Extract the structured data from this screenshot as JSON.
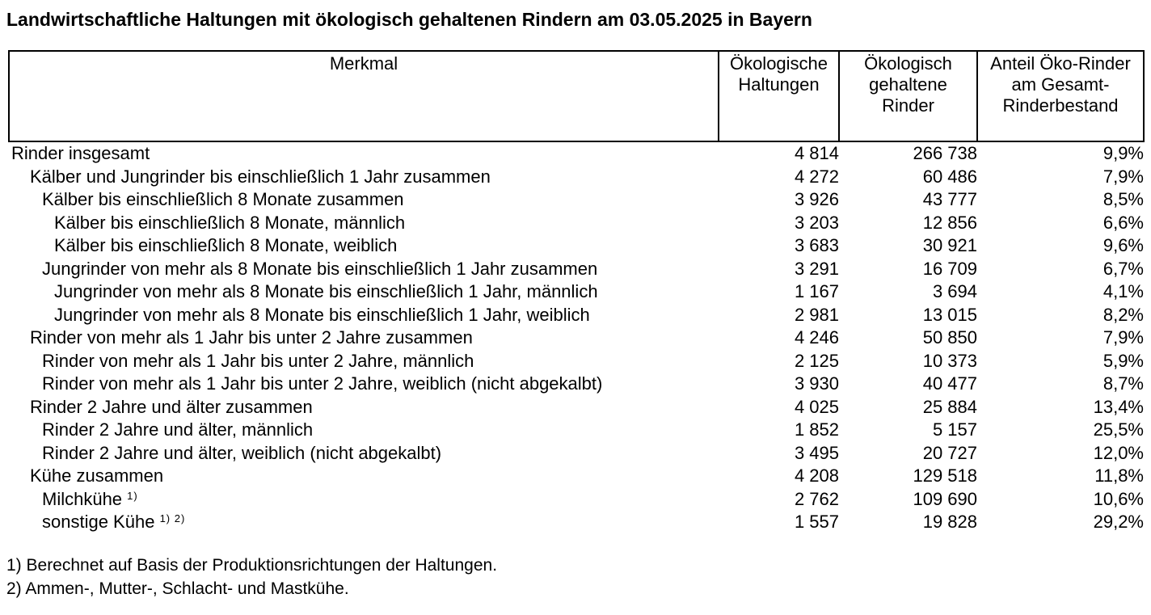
{
  "title": "Landwirtschaftliche Haltungen mit ökologisch gehaltenen Rindern am 03.05.2025 in Bayern",
  "table": {
    "columns": [
      "Merkmal",
      "Ökologische\nHaltungen",
      "Ökologisch\ngehaltene\nRinder",
      "Anteil Öko-Rinder\nam Gesamt-\nRinderbestand"
    ],
    "rows": [
      {
        "label": "Rinder insgesamt",
        "indent": 0,
        "sup": "",
        "holdings": "4 814",
        "cattle": "266 738",
        "share": "9,9%"
      },
      {
        "label": "Kälber und Jungrinder bis einschließlich 1 Jahr zusammen",
        "indent": 1,
        "sup": "",
        "holdings": "4 272",
        "cattle": "60 486",
        "share": "7,9%"
      },
      {
        "label": "Kälber bis einschließlich 8 Monate zusammen",
        "indent": 2,
        "sup": "",
        "holdings": "3 926",
        "cattle": "43 777",
        "share": "8,5%"
      },
      {
        "label": "Kälber bis einschließlich 8 Monate, männlich",
        "indent": 3,
        "sup": "",
        "holdings": "3 203",
        "cattle": "12 856",
        "share": "6,6%"
      },
      {
        "label": "Kälber bis einschließlich 8 Monate, weiblich",
        "indent": 3,
        "sup": "",
        "holdings": "3 683",
        "cattle": "30 921",
        "share": "9,6%"
      },
      {
        "label": "Jungrinder von mehr als 8 Monate bis einschließlich 1 Jahr zusammen",
        "indent": 2,
        "sup": "",
        "holdings": "3 291",
        "cattle": "16 709",
        "share": "6,7%"
      },
      {
        "label": "Jungrinder von mehr als 8 Monate bis einschließlich 1 Jahr, männlich",
        "indent": 3,
        "sup": "",
        "holdings": "1 167",
        "cattle": "3 694",
        "share": "4,1%"
      },
      {
        "label": "Jungrinder von mehr als 8 Monate bis einschließlich 1 Jahr, weiblich",
        "indent": 3,
        "sup": "",
        "holdings": "2 981",
        "cattle": "13 015",
        "share": "8,2%"
      },
      {
        "label": "Rinder von mehr als 1 Jahr bis unter 2 Jahre zusammen",
        "indent": 1,
        "sup": "",
        "holdings": "4 246",
        "cattle": "50 850",
        "share": "7,9%"
      },
      {
        "label": "Rinder von mehr als 1 Jahr bis unter 2 Jahre, männlich",
        "indent": 2,
        "sup": "",
        "holdings": "2 125",
        "cattle": "10 373",
        "share": "5,9%"
      },
      {
        "label": "Rinder von mehr als 1 Jahr bis unter 2 Jahre, weiblich (nicht abgekalbt)",
        "indent": 2,
        "sup": "",
        "holdings": "3 930",
        "cattle": "40 477",
        "share": "8,7%"
      },
      {
        "label": "Rinder 2 Jahre und älter zusammen",
        "indent": 1,
        "sup": "",
        "holdings": "4 025",
        "cattle": "25 884",
        "share": "13,4%"
      },
      {
        "label": "Rinder 2 Jahre und älter, männlich",
        "indent": 2,
        "sup": "",
        "holdings": "1 852",
        "cattle": "5 157",
        "share": "25,5%"
      },
      {
        "label": "Rinder 2 Jahre und älter, weiblich (nicht abgekalbt)",
        "indent": 2,
        "sup": "",
        "holdings": "3 495",
        "cattle": "20 727",
        "share": "12,0%"
      },
      {
        "label": "Kühe zusammen",
        "indent": 1,
        "sup": "",
        "holdings": "4 208",
        "cattle": "129 518",
        "share": "11,8%"
      },
      {
        "label": "Milchkühe",
        "indent": 2,
        "sup": "1)",
        "holdings": "2 762",
        "cattle": "109 690",
        "share": "10,6%"
      },
      {
        "label": "sonstige Kühe",
        "indent": 2,
        "sup": "1) 2)",
        "holdings": "1 557",
        "cattle": "19 828",
        "share": "29,2%"
      }
    ]
  },
  "footnotes": [
    "1) Berechnet auf Basis der Produktionsrichtungen der Haltungen.",
    "2) Ammen-, Mutter-, Schlacht- und Mastkühe."
  ]
}
